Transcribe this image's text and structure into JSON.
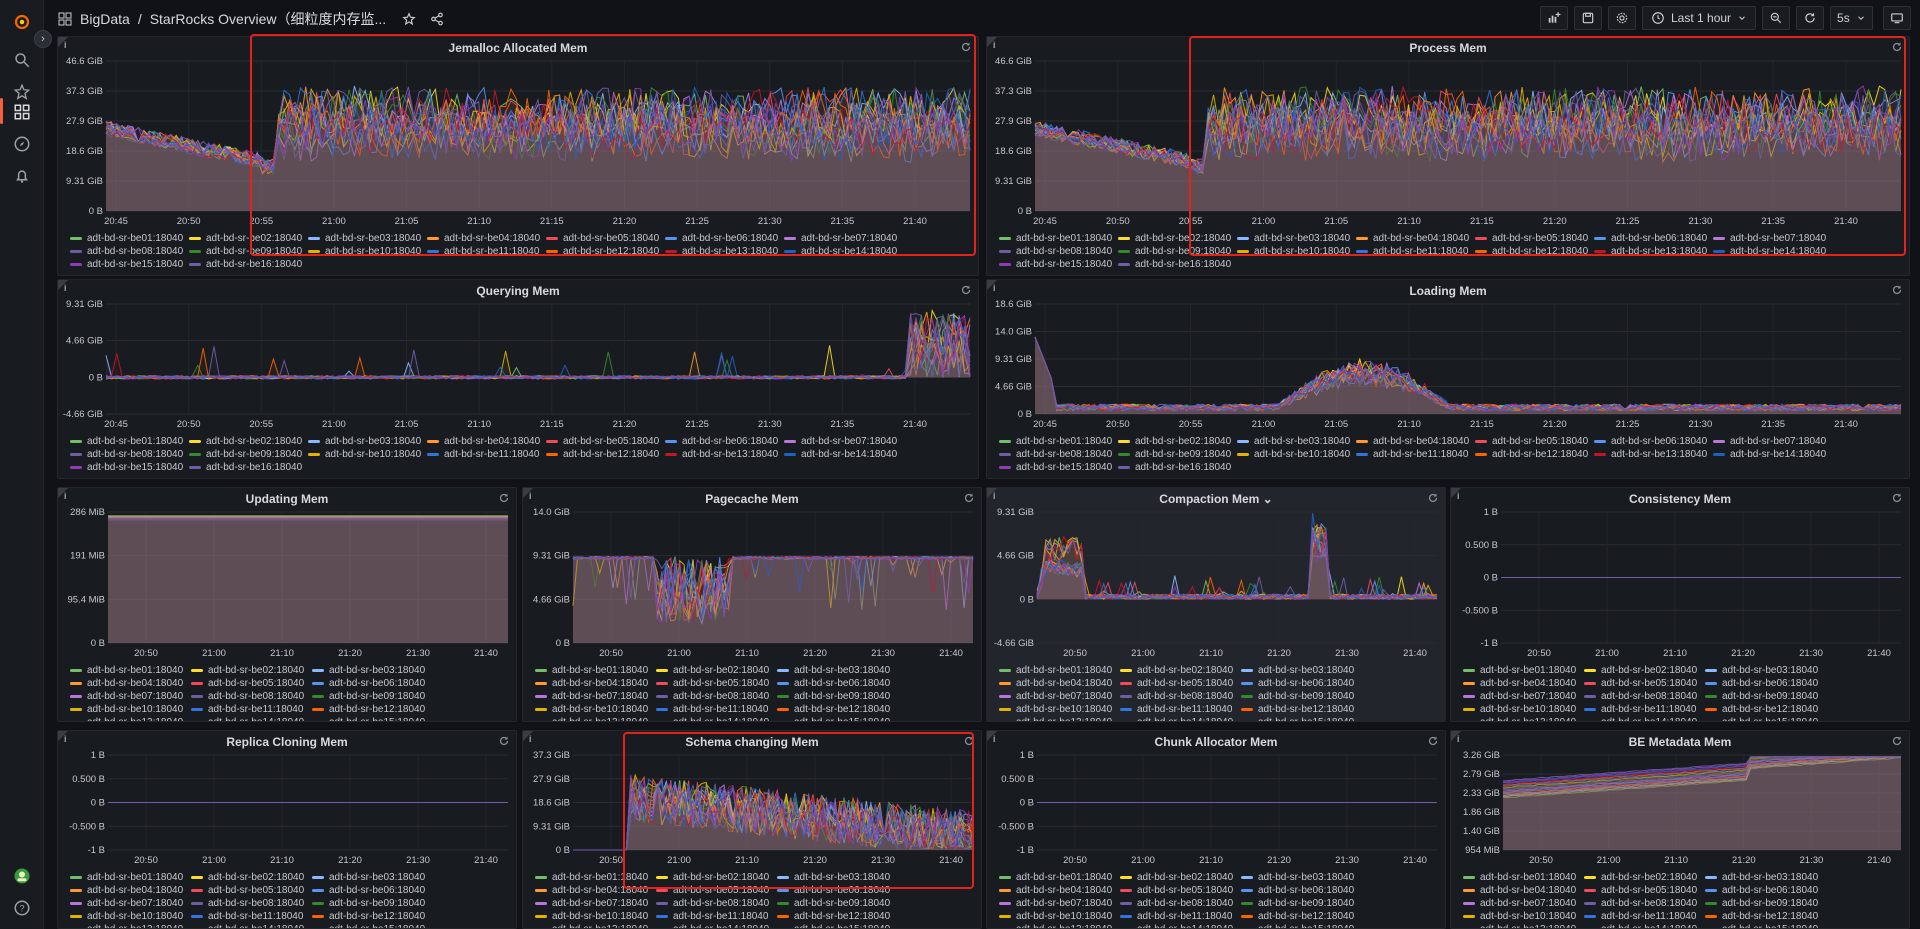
{
  "breadcrumb": {
    "folder": "BigData",
    "separator": "/",
    "title": "StarRocks Overview（细粒度内存监..."
  },
  "toolbar": {
    "time_range": "Last 1 hour",
    "refresh_interval": "5s"
  },
  "series_names": [
    "adt-bd-sr-be01:18040",
    "adt-bd-sr-be02:18040",
    "adt-bd-sr-be03:18040",
    "adt-bd-sr-be04:18040",
    "adt-bd-sr-be05:18040",
    "adt-bd-sr-be06:18040",
    "adt-bd-sr-be07:18040",
    "adt-bd-sr-be08:18040",
    "adt-bd-sr-be09:18040",
    "adt-bd-sr-be10:18040",
    "adt-bd-sr-be11:18040",
    "adt-bd-sr-be12:18040",
    "adt-bd-sr-be13:18040",
    "adt-bd-sr-be14:18040",
    "adt-bd-sr-be15:18040",
    "adt-bd-sr-be16:18040"
  ],
  "series_colors": [
    "#73bf69",
    "#fade2a",
    "#8ab8ff",
    "#ff9830",
    "#f2495c",
    "#5794f2",
    "#b877d9",
    "#705da0",
    "#37872d",
    "#e0b400",
    "#3274d9",
    "#fa6400",
    "#c4162a",
    "#1f60c4",
    "#8f3bb8",
    "#6e5fa6"
  ],
  "panels": [
    {
      "id": "jemalloc",
      "title": "Jemalloc Allocated Mem",
      "yticks": [
        "46.6 GiB",
        "37.3 GiB",
        "27.9 GiB",
        "18.6 GiB",
        "9.31 GiB",
        "0 B"
      ],
      "xticks": [
        "20:45",
        "20:50",
        "20:55",
        "21:00",
        "21:05",
        "21:10",
        "21:15",
        "21:20",
        "21:25",
        "21:30",
        "21:35",
        "21:40"
      ]
    },
    {
      "id": "process",
      "title": "Process Mem",
      "yticks": [
        "46.6 GiB",
        "37.3 GiB",
        "27.9 GiB",
        "18.6 GiB",
        "9.31 GiB",
        "0 B"
      ],
      "xticks": [
        "20:45",
        "20:50",
        "20:55",
        "21:00",
        "21:05",
        "21:10",
        "21:15",
        "21:20",
        "21:25",
        "21:30",
        "21:35",
        "21:40"
      ]
    },
    {
      "id": "querying",
      "title": "Querying Mem",
      "yticks": [
        "9.31 GiB",
        "4.66 GiB",
        "0 B",
        "-4.66 GiB"
      ],
      "xticks": [
        "20:45",
        "20:50",
        "20:55",
        "21:00",
        "21:05",
        "21:10",
        "21:15",
        "21:20",
        "21:25",
        "21:30",
        "21:35",
        "21:40"
      ]
    },
    {
      "id": "loading",
      "title": "Loading Mem",
      "yticks": [
        "18.6 GiB",
        "14.0 GiB",
        "9.31 GiB",
        "4.66 GiB",
        "0 B"
      ],
      "xticks": [
        "20:45",
        "20:50",
        "20:55",
        "21:00",
        "21:05",
        "21:10",
        "21:15",
        "21:20",
        "21:25",
        "21:30",
        "21:35",
        "21:40"
      ]
    },
    {
      "id": "updating",
      "title": "Updating Mem",
      "yticks": [
        "286 MiB",
        "191 MiB",
        "95.4 MiB",
        "0 B"
      ],
      "xticks": [
        "20:50",
        "21:00",
        "21:10",
        "21:20",
        "21:30",
        "21:40"
      ]
    },
    {
      "id": "pagecache",
      "title": "Pagecache Mem",
      "yticks": [
        "14.0 GiB",
        "9.31 GiB",
        "4.66 GiB",
        "0 B"
      ],
      "xticks": [
        "20:50",
        "21:00",
        "21:10",
        "21:20",
        "21:30",
        "21:40"
      ]
    },
    {
      "id": "compaction",
      "title": "Compaction Mem",
      "yticks": [
        "9.31 GiB",
        "4.66 GiB",
        "0 B",
        "-4.66 GiB"
      ],
      "xticks": [
        "20:50",
        "21:00",
        "21:10",
        "21:20",
        "21:30",
        "21:40"
      ]
    },
    {
      "id": "consistency",
      "title": "Consistency Mem",
      "yticks": [
        "1 B",
        "0.500 B",
        "0 B",
        "-0.500 B",
        "-1 B"
      ],
      "xticks": [
        "20:50",
        "21:00",
        "21:10",
        "21:20",
        "21:30",
        "21:40"
      ]
    },
    {
      "id": "replica",
      "title": "Replica Cloning Mem",
      "yticks": [
        "1 B",
        "0.500 B",
        "0 B",
        "-0.500 B",
        "-1 B"
      ],
      "xticks": [
        "20:50",
        "21:00",
        "21:10",
        "21:20",
        "21:30",
        "21:40"
      ]
    },
    {
      "id": "schema",
      "title": "Schema changing Mem",
      "yticks": [
        "37.3 GiB",
        "27.9 GiB",
        "18.6 GiB",
        "9.31 GiB",
        "0 B"
      ],
      "xticks": [
        "20:50",
        "21:00",
        "21:10",
        "21:20",
        "21:30",
        "21:40"
      ]
    },
    {
      "id": "chunk",
      "title": "Chunk Allocator Mem",
      "yticks": [
        "1 B",
        "0.500 B",
        "0 B",
        "-0.500 B",
        "-1 B"
      ],
      "xticks": [
        "20:50",
        "21:00",
        "21:10",
        "21:20",
        "21:30",
        "21:40"
      ]
    },
    {
      "id": "metadata",
      "title": "BE Metadata Mem",
      "yticks": [
        "3.26 GiB",
        "2.79 GiB",
        "2.33 GiB",
        "1.86 GiB",
        "1.40 GiB",
        "954 MiB"
      ],
      "xticks": [
        "20:50",
        "21:00",
        "21:10",
        "21:20",
        "21:30",
        "21:40"
      ]
    }
  ]
}
